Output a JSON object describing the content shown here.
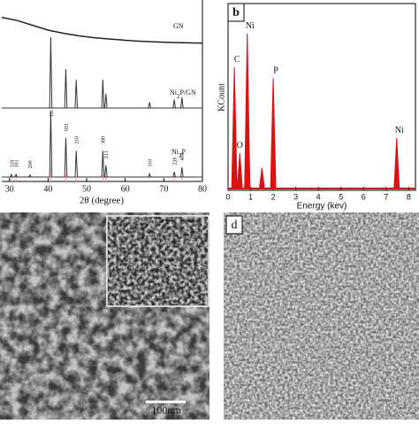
{
  "chart_data": [
    {
      "type": "xrd",
      "x_label": "2θ (degree)",
      "xlim": [
        28,
        80
      ],
      "xticks": [
        30,
        40,
        50,
        60,
        70,
        80
      ],
      "ylim": [
        0,
        100
      ],
      "series": [
        {
          "name": "GN",
          "color": "#222222",
          "x": [
            28,
            32,
            36,
            40,
            44,
            48,
            52,
            56,
            60,
            64,
            68,
            72,
            76,
            80
          ],
          "values": [
            90,
            80,
            65,
            50,
            40,
            32,
            26,
            22,
            18,
            15,
            13,
            11,
            10,
            9
          ]
        },
        {
          "name": "Ni2P/GN",
          "color": "#333333",
          "x": [
            40.7,
            44.6,
            47.3,
            54.2,
            55.0,
            66.3,
            72.7,
            74.7
          ],
          "values": [
            100,
            55,
            40,
            40,
            20,
            8,
            12,
            15
          ]
        },
        {
          "name": "Ni2P",
          "color": "#333333",
          "x": [
            30.5,
            31.7,
            35.3,
            40.7,
            44.6,
            47.3,
            54.2,
            55.0,
            66.3,
            72.7,
            74.7
          ],
          "values": [
            4,
            4,
            3,
            100,
            60,
            40,
            40,
            18,
            5,
            8,
            15
          ],
          "peak_labels": [
            "110",
            "101",
            "200",
            "111",
            "021",
            "210",
            "300",
            "211",
            "310",
            "220",
            "400"
          ]
        }
      ],
      "reference": {
        "color": "#f0a0b4",
        "x": [
          30.5,
          31.7,
          35.3,
          40.7,
          44.6,
          47.3,
          54.2,
          55.0,
          66.3,
          72.7,
          74.7
        ],
        "values": [
          15,
          15,
          10,
          100,
          45,
          30,
          35,
          20,
          10,
          15,
          20
        ]
      }
    },
    {
      "type": "eds",
      "panel_label": "b",
      "x_label": "Energy (kev)",
      "y_label": "KCount",
      "color": "#dd1111",
      "xlim": [
        0,
        8.3
      ],
      "xticks": [
        0,
        1,
        2,
        3,
        4,
        5,
        6,
        7,
        8
      ],
      "ylim": [
        0,
        100
      ],
      "x": [
        0.28,
        0.52,
        0.85,
        1.5,
        2.0,
        7.47
      ],
      "values": [
        66,
        20,
        84,
        12,
        60,
        28
      ],
      "peak_labels": [
        "C",
        "O",
        "Ni",
        null,
        "P",
        "Ni"
      ]
    }
  ],
  "panels": {
    "c": {
      "scale_bar": "100nm"
    },
    "d": {
      "label": "d"
    }
  }
}
